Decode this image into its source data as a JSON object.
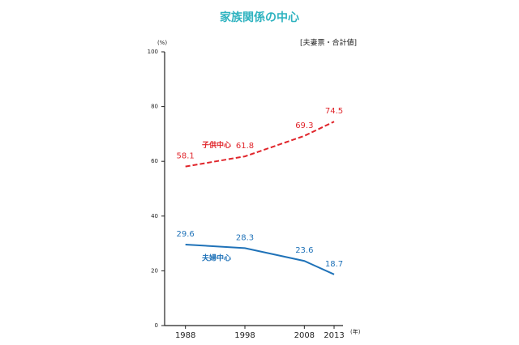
{
  "chart_data": {
    "type": "line",
    "title": "家族関係の中心",
    "y_unit": "(%)",
    "note": "[夫妻票・合計値]",
    "x_unit": "(年)",
    "x": [
      1988,
      1998,
      2008,
      2013
    ],
    "series": [
      {
        "name": "子供中心",
        "color": "#e0252b",
        "dash": true,
        "values": [
          58.1,
          61.8,
          69.3,
          74.5
        ]
      },
      {
        "name": "夫婦中心",
        "color": "#1f72b8",
        "dash": false,
        "values": [
          29.6,
          28.3,
          23.6,
          18.7
        ]
      }
    ],
    "xlim": [
      1984.5,
      2014.5
    ],
    "xticks": [
      1988,
      1998,
      2008,
      2013
    ],
    "ylim": [
      0,
      100
    ],
    "yticks": [
      0,
      20,
      40,
      60,
      80,
      100
    ]
  }
}
